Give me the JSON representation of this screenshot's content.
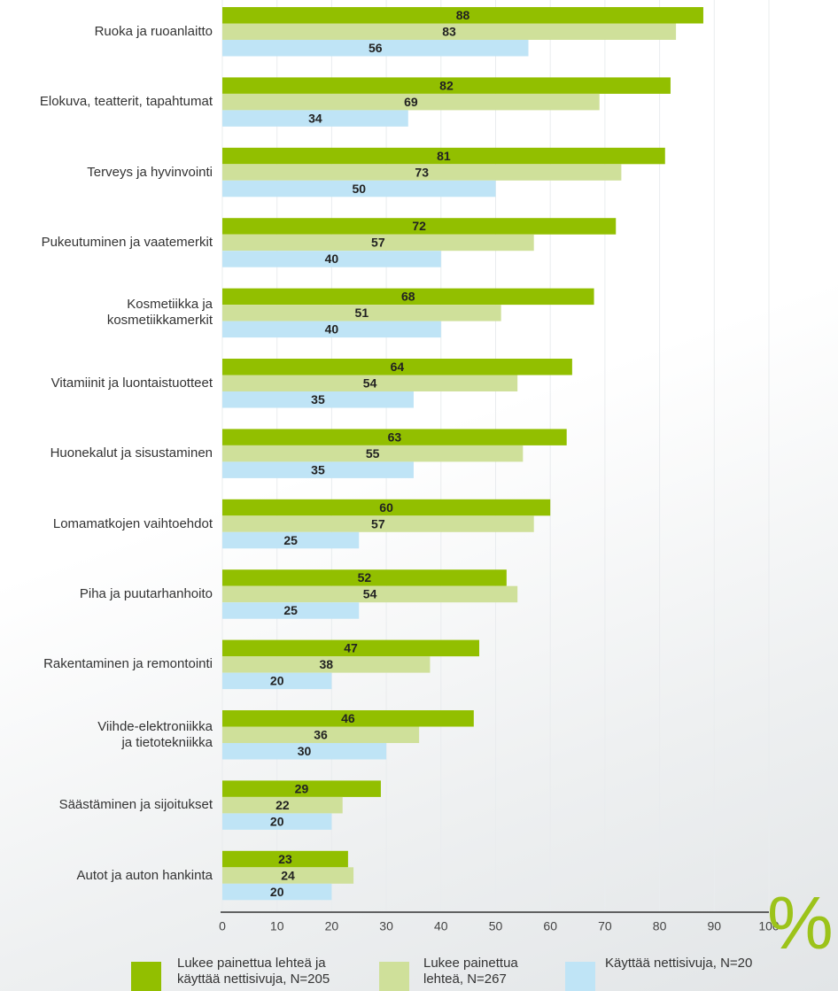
{
  "chart_data": {
    "type": "hbar",
    "categories": [
      "Ruoka ja ruoanlaitto",
      "Elokuva, teatterit, tapahtumat",
      "Terveys ja hyvinvointi",
      "Pukeutuminen ja vaatemerkit",
      "Kosmetiikka ja\nkosmetiikkamerkit",
      "Vitamiinit ja luontaistuotteet",
      "Huonekalut ja sisustaminen",
      "Lomamatkojen vaihtoehdot",
      "Piha ja puutarhanhoito",
      "Rakentaminen ja remontointi",
      "Viihde-elektroniikka\nja tietotekniikka",
      "Säästäminen ja sijoitukset",
      "Autot ja auton hankinta"
    ],
    "series": [
      {
        "name": "Lukee painettua lehteä ja\nkäyttää nettisivuja, N=205",
        "color": "#92bf00",
        "values": [
          88,
          82,
          81,
          72,
          68,
          64,
          63,
          60,
          52,
          47,
          46,
          29,
          23
        ]
      },
      {
        "name": "Lukee painettua\nlehteä, N=267",
        "color": "#cfe09a",
        "values": [
          83,
          69,
          73,
          57,
          51,
          54,
          55,
          57,
          54,
          38,
          36,
          22,
          24
        ]
      },
      {
        "name": "Käyttää nettisivuja, N=20",
        "color": "#bfe4f6",
        "values": [
          56,
          34,
          50,
          40,
          40,
          35,
          35,
          25,
          25,
          20,
          30,
          20,
          20
        ]
      }
    ],
    "xlim": [
      0,
      100
    ],
    "xticks": [
      0,
      10,
      20,
      30,
      40,
      50,
      60,
      70,
      80,
      90,
      100
    ],
    "grid": true,
    "annotation": "%"
  }
}
